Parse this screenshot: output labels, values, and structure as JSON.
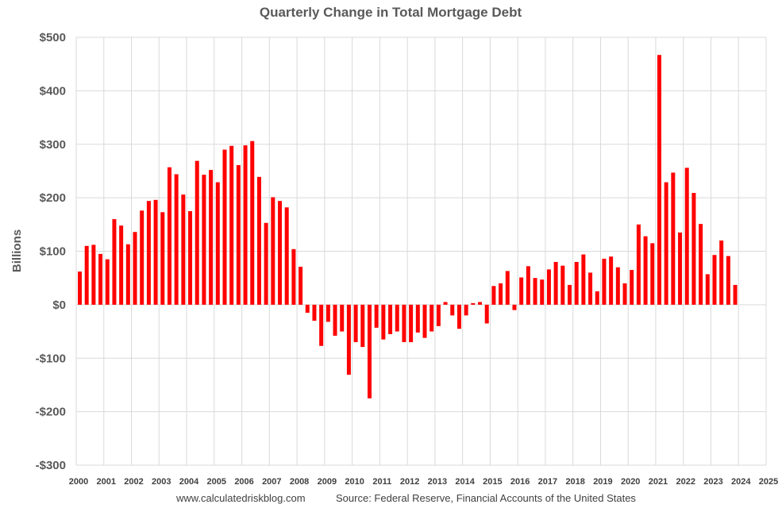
{
  "chart_data": {
    "type": "bar",
    "title": "Quarterly Change in Total Mortgage Debt",
    "ylabel": "Billions",
    "xlabel": "",
    "ylim": [
      -300,
      500
    ],
    "xlim": [
      2000,
      2025
    ],
    "grid": true,
    "bar_color": "#ff0000",
    "source_left": "www.calculatedriskblog.com",
    "source_right": "Source: Federal Reserve, Financial Accounts of the United States",
    "yticks": [
      {
        "value": 500,
        "label": "$500"
      },
      {
        "value": 400,
        "label": "$400"
      },
      {
        "value": 300,
        "label": "$300"
      },
      {
        "value": 200,
        "label": "$200"
      },
      {
        "value": 100,
        "label": "$100"
      },
      {
        "value": 0,
        "label": "$0"
      },
      {
        "value": -100,
        "label": "-$100"
      },
      {
        "value": -200,
        "label": "-$200"
      },
      {
        "value": -300,
        "label": "-$300"
      }
    ],
    "xticks": [
      {
        "value": 2000,
        "label": "2000"
      },
      {
        "value": 2001,
        "label": "2001"
      },
      {
        "value": 2002,
        "label": "2002"
      },
      {
        "value": 2003,
        "label": "2003"
      },
      {
        "value": 2004,
        "label": "2004"
      },
      {
        "value": 2005,
        "label": "2005"
      },
      {
        "value": 2006,
        "label": "2006"
      },
      {
        "value": 2007,
        "label": "2007"
      },
      {
        "value": 2008,
        "label": "2008"
      },
      {
        "value": 2009,
        "label": "2009"
      },
      {
        "value": 2010,
        "label": "2010"
      },
      {
        "value": 2011,
        "label": "2011"
      },
      {
        "value": 2012,
        "label": "2012"
      },
      {
        "value": 2013,
        "label": "2013"
      },
      {
        "value": 2014,
        "label": "2014"
      },
      {
        "value": 2015,
        "label": "2015"
      },
      {
        "value": 2016,
        "label": "2016"
      },
      {
        "value": 2017,
        "label": "2017"
      },
      {
        "value": 2018,
        "label": "2018"
      },
      {
        "value": 2019,
        "label": "2019"
      },
      {
        "value": 2020,
        "label": "2020"
      },
      {
        "value": 2021,
        "label": "2021"
      },
      {
        "value": 2022,
        "label": "2022"
      },
      {
        "value": 2023,
        "label": "2023"
      },
      {
        "value": 2024,
        "label": "2024"
      },
      {
        "value": 2025,
        "label": "2025"
      }
    ],
    "series": [
      {
        "quarters": [
          "2000 Q1",
          "2000 Q2",
          "2000 Q3",
          "2000 Q4",
          "2001 Q1",
          "2001 Q2",
          "2001 Q3",
          "2001 Q4",
          "2002 Q1",
          "2002 Q2",
          "2002 Q3",
          "2002 Q4",
          "2003 Q1",
          "2003 Q2",
          "2003 Q3",
          "2003 Q4",
          "2004 Q1",
          "2004 Q2",
          "2004 Q3",
          "2004 Q4",
          "2005 Q1",
          "2005 Q2",
          "2005 Q3",
          "2005 Q4",
          "2006 Q1",
          "2006 Q2",
          "2006 Q3",
          "2006 Q4",
          "2007 Q1",
          "2007 Q2",
          "2007 Q3",
          "2007 Q4",
          "2008 Q1",
          "2008 Q2",
          "2008 Q3",
          "2008 Q4",
          "2009 Q1",
          "2009 Q2",
          "2009 Q3",
          "2009 Q4",
          "2010 Q1",
          "2010 Q2",
          "2010 Q3",
          "2010 Q4",
          "2011 Q1",
          "2011 Q2",
          "2011 Q3",
          "2011 Q4",
          "2012 Q1",
          "2012 Q2",
          "2012 Q3",
          "2012 Q4",
          "2013 Q1",
          "2013 Q2",
          "2013 Q3",
          "2013 Q4",
          "2014 Q1",
          "2014 Q2",
          "2014 Q3",
          "2014 Q4",
          "2015 Q1",
          "2015 Q2",
          "2015 Q3",
          "2015 Q4",
          "2016 Q1",
          "2016 Q2",
          "2016 Q3",
          "2016 Q4",
          "2017 Q1",
          "2017 Q2",
          "2017 Q3",
          "2017 Q4",
          "2018 Q1",
          "2018 Q2",
          "2018 Q3",
          "2018 Q4",
          "2019 Q1",
          "2019 Q2",
          "2019 Q3",
          "2019 Q4",
          "2020 Q1",
          "2020 Q2",
          "2020 Q3",
          "2020 Q4",
          "2021 Q1",
          "2021 Q2",
          "2021 Q3",
          "2021 Q4",
          "2022 Q1",
          "2022 Q2",
          "2022 Q3",
          "2022 Q4",
          "2023 Q1",
          "2023 Q2",
          "2023 Q3",
          "2023 Q4",
          "2024 Q1"
        ],
        "x": [
          2000.0,
          2000.25,
          2000.5,
          2000.75,
          2001.0,
          2001.25,
          2001.5,
          2001.75,
          2002.0,
          2002.25,
          2002.5,
          2002.75,
          2003.0,
          2003.25,
          2003.5,
          2003.75,
          2004.0,
          2004.25,
          2004.5,
          2004.75,
          2005.0,
          2005.25,
          2005.5,
          2005.75,
          2006.0,
          2006.25,
          2006.5,
          2006.75,
          2007.0,
          2007.25,
          2007.5,
          2007.75,
          2008.0,
          2008.25,
          2008.5,
          2008.75,
          2009.0,
          2009.25,
          2009.5,
          2009.75,
          2010.0,
          2010.25,
          2010.5,
          2010.75,
          2011.0,
          2011.25,
          2011.5,
          2011.75,
          2012.0,
          2012.25,
          2012.5,
          2012.75,
          2013.0,
          2013.25,
          2013.5,
          2013.75,
          2014.0,
          2014.25,
          2014.5,
          2014.75,
          2015.0,
          2015.25,
          2015.5,
          2015.75,
          2016.0,
          2016.25,
          2016.5,
          2016.75,
          2017.0,
          2017.25,
          2017.5,
          2017.75,
          2018.0,
          2018.25,
          2018.5,
          2018.75,
          2019.0,
          2019.25,
          2019.5,
          2019.75,
          2020.0,
          2020.25,
          2020.5,
          2020.75,
          2021.0,
          2021.25,
          2021.5,
          2021.75,
          2022.0,
          2022.25,
          2022.5,
          2022.75,
          2023.0,
          2023.25,
          2023.5,
          2023.75,
          2024.0
        ],
        "values": [
          62,
          110,
          112,
          95,
          85,
          160,
          148,
          113,
          136,
          176,
          194,
          196,
          173,
          257,
          244,
          206,
          175,
          269,
          243,
          252,
          229,
          290,
          297,
          261,
          298,
          306,
          239,
          153,
          201,
          194,
          182,
          104,
          71,
          -15,
          -30,
          -77,
          -32,
          -58,
          -50,
          -131,
          -70,
          -79,
          -175,
          -43,
          -65,
          -55,
          -50,
          -70,
          -70,
          -52,
          -62,
          -50,
          -40,
          5,
          -20,
          -45,
          -20,
          3,
          5,
          -35,
          35,
          40,
          63,
          -10,
          51,
          72,
          50,
          47,
          66,
          80,
          73,
          37,
          80,
          94,
          60,
          25,
          86,
          90,
          70,
          40,
          65,
          150,
          128,
          115,
          467,
          229,
          247,
          135,
          256,
          209,
          151,
          57,
          93,
          120,
          91,
          37,
          null
        ]
      }
    ]
  }
}
